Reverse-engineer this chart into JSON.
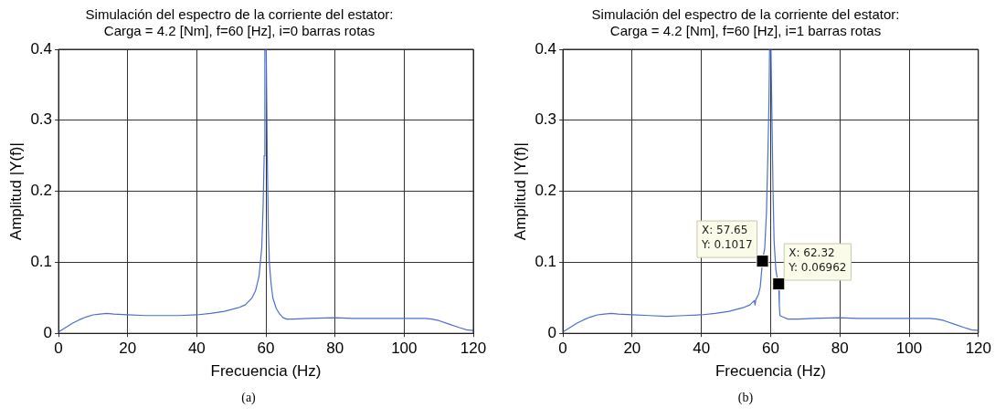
{
  "chart_data": [
    {
      "type": "line",
      "title": "Simulación del espectro de la corriente del estator:\nCarga = 4.2 [Nm], f=60 [Hz], i=0 barras rotas",
      "xlabel": "Frecuencia (Hz)",
      "ylabel": "Amplitud |Y(f)|",
      "series": [
        {
          "color": "#4a6fd0",
          "x": [
            0,
            2,
            4,
            6,
            8,
            10,
            12,
            14,
            16,
            20,
            25,
            30,
            35,
            40,
            44,
            48,
            52,
            54,
            56,
            57,
            58,
            58.8,
            59.2,
            59.5,
            59.7,
            60.1,
            60.4,
            60.7,
            61,
            61.5,
            62,
            63,
            64,
            65,
            66,
            68,
            72,
            80,
            85,
            90,
            100,
            106,
            108,
            110,
            113,
            116,
            118,
            120
          ],
          "values": [
            0.002,
            0.008,
            0.014,
            0.019,
            0.023,
            0.026,
            0.027,
            0.028,
            0.027,
            0.026,
            0.025,
            0.025,
            0.025,
            0.026,
            0.028,
            0.031,
            0.036,
            0.04,
            0.05,
            0.06,
            0.08,
            0.12,
            0.18,
            0.25,
            0.4,
            0.4,
            0.25,
            0.15,
            0.1,
            0.07,
            0.05,
            0.035,
            0.027,
            0.022,
            0.02,
            0.02,
            0.021,
            0.022,
            0.021,
            0.021,
            0.021,
            0.021,
            0.02,
            0.018,
            0.013,
            0.008,
            0.005,
            0.004
          ]
        }
      ],
      "xlim": [
        0,
        120
      ],
      "xticks": [
        0,
        20,
        40,
        60,
        80,
        100,
        120
      ],
      "ylim": [
        0,
        0.4
      ],
      "yticks": [
        0,
        0.1,
        0.2,
        0.3,
        0.4
      ],
      "grid": true,
      "marker": "none",
      "line_style": "solid",
      "annotations": [
        "(a)"
      ]
    },
    {
      "type": "line",
      "title": "Simulación del espectro de la corriente del estator:\nCarga = 4.2 [Nm], f=60 [Hz], i=1 barras rotas",
      "xlabel": "Frecuencia (Hz)",
      "ylabel": "Amplitud |Y(f)|",
      "series": [
        {
          "color": "#4a6fd0",
          "x": [
            0,
            2,
            4,
            6,
            8,
            10,
            12,
            14,
            16,
            20,
            25,
            30,
            35,
            40,
            44,
            48,
            52,
            54,
            55.3,
            55.5,
            55.7,
            56.5,
            57,
            57.65,
            58.3,
            58.8,
            59.2,
            59.5,
            59.7,
            60.1,
            60.4,
            60.7,
            61,
            61.5,
            62,
            62.32,
            62.5,
            62.7,
            63.5,
            65,
            66,
            68,
            72,
            80,
            85,
            90,
            100,
            106,
            108,
            110,
            113,
            116,
            118,
            120
          ],
          "values": [
            0.002,
            0.008,
            0.014,
            0.019,
            0.023,
            0.026,
            0.027,
            0.028,
            0.027,
            0.026,
            0.025,
            0.024,
            0.025,
            0.026,
            0.028,
            0.031,
            0.036,
            0.04,
            0.046,
            0.04,
            0.047,
            0.055,
            0.065,
            0.1017,
            0.12,
            0.17,
            0.25,
            0.32,
            0.4,
            0.4,
            0.3,
            0.2,
            0.13,
            0.09,
            0.075,
            0.06962,
            0.04,
            0.025,
            0.023,
            0.02,
            0.02,
            0.02,
            0.021,
            0.022,
            0.021,
            0.021,
            0.021,
            0.021,
            0.02,
            0.018,
            0.013,
            0.008,
            0.005,
            0.004
          ]
        }
      ],
      "xlim": [
        0,
        120
      ],
      "xticks": [
        0,
        20,
        40,
        60,
        80,
        100,
        120
      ],
      "ylim": [
        0,
        0.4
      ],
      "yticks": [
        0,
        0.1,
        0.2,
        0.3,
        0.4
      ],
      "grid": true,
      "marker": "none",
      "line_style": "solid",
      "annotations": [
        {
          "text": "X: 57.65\nY: 0.1017",
          "x": 57.65,
          "y": 0.1017
        },
        {
          "text": "X: 62.32\nY: 0.06962",
          "x": 62.32,
          "y": 0.06962
        },
        "(b)"
      ]
    }
  ]
}
